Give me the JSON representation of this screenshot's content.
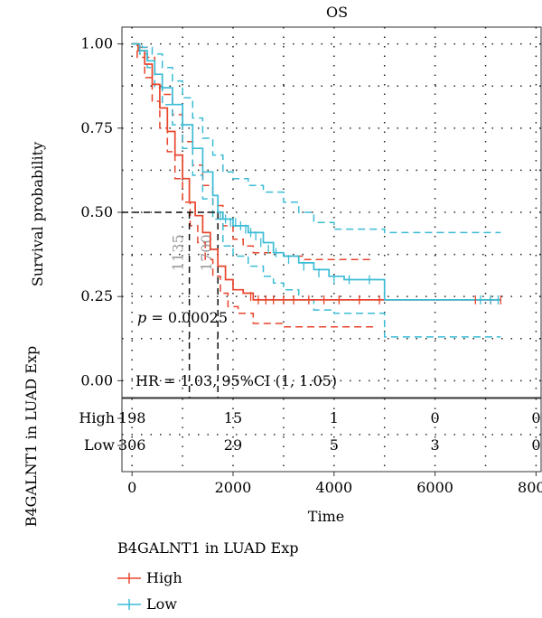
{
  "chart_data": {
    "type": "line",
    "title": "OS",
    "xlabel": "Time",
    "ylabel": "Survival probability",
    "xlim": [
      -200,
      8100
    ],
    "ylim": [
      -0.05,
      1.05
    ],
    "x_ticks": [
      0,
      2000,
      4000,
      6000,
      8000
    ],
    "x_tick_labels": [
      "0",
      "2000",
      "4000",
      "6000",
      "8000"
    ],
    "y_ticks": [
      0,
      0.25,
      0.5,
      0.75,
      1.0
    ],
    "y_tick_labels": [
      "0.00",
      "0.25",
      "0.50",
      "0.75",
      "1.00"
    ],
    "grid": true,
    "series": [
      {
        "name": "High",
        "color": "#e8452c",
        "curve": [
          [
            0,
            1.0
          ],
          [
            120,
            0.98
          ],
          [
            250,
            0.94
          ],
          [
            400,
            0.88
          ],
          [
            550,
            0.81
          ],
          [
            700,
            0.74
          ],
          [
            850,
            0.67
          ],
          [
            1000,
            0.6
          ],
          [
            1135,
            0.53
          ],
          [
            1250,
            0.49
          ],
          [
            1400,
            0.44
          ],
          [
            1550,
            0.39
          ],
          [
            1700,
            0.34
          ],
          [
            1850,
            0.3
          ],
          [
            2000,
            0.27
          ],
          [
            2200,
            0.26
          ],
          [
            2400,
            0.24
          ],
          [
            2700,
            0.24
          ],
          [
            3500,
            0.24
          ],
          [
            4200,
            0.24
          ],
          [
            5000,
            0.24
          ],
          [
            7300,
            0.24
          ]
        ],
        "ci_upper": [
          [
            0,
            1.0
          ],
          [
            150,
            0.99
          ],
          [
            300,
            0.96
          ],
          [
            450,
            0.91
          ],
          [
            600,
            0.85
          ],
          [
            800,
            0.79
          ],
          [
            1000,
            0.71
          ],
          [
            1200,
            0.64
          ],
          [
            1400,
            0.58
          ],
          [
            1600,
            0.52
          ],
          [
            1800,
            0.46
          ],
          [
            2000,
            0.42
          ],
          [
            2200,
            0.4
          ],
          [
            2400,
            0.38
          ],
          [
            3000,
            0.37
          ],
          [
            3400,
            0.36
          ],
          [
            4000,
            0.36
          ],
          [
            4800,
            0.36
          ]
        ],
        "ci_lower": [
          [
            0,
            1.0
          ],
          [
            100,
            0.96
          ],
          [
            250,
            0.9
          ],
          [
            400,
            0.83
          ],
          [
            550,
            0.75
          ],
          [
            700,
            0.68
          ],
          [
            850,
            0.6
          ],
          [
            1000,
            0.53
          ],
          [
            1150,
            0.46
          ],
          [
            1300,
            0.41
          ],
          [
            1450,
            0.36
          ],
          [
            1600,
            0.31
          ],
          [
            1750,
            0.26
          ],
          [
            1900,
            0.22
          ],
          [
            2100,
            0.2
          ],
          [
            2400,
            0.17
          ],
          [
            3000,
            0.16
          ],
          [
            3800,
            0.16
          ],
          [
            4800,
            0.16
          ]
        ],
        "censor_x": [
          2350,
          2500,
          2650,
          2800,
          3000,
          3200,
          3500,
          3800,
          4100,
          4500,
          4900,
          6800,
          7100,
          7300
        ],
        "censor_y": [
          0.25,
          0.24,
          0.24,
          0.24,
          0.24,
          0.24,
          0.24,
          0.24,
          0.24,
          0.24,
          0.24,
          0.24,
          0.24,
          0.24
        ]
      },
      {
        "name": "Low",
        "color": "#3bbcd5",
        "curve": [
          [
            0,
            1.0
          ],
          [
            150,
            0.98
          ],
          [
            300,
            0.95
          ],
          [
            450,
            0.91
          ],
          [
            600,
            0.87
          ],
          [
            800,
            0.82
          ],
          [
            1000,
            0.76
          ],
          [
            1200,
            0.69
          ],
          [
            1400,
            0.62
          ],
          [
            1600,
            0.55
          ],
          [
            1700,
            0.5
          ],
          [
            1800,
            0.48
          ],
          [
            2000,
            0.46
          ],
          [
            2300,
            0.44
          ],
          [
            2600,
            0.41
          ],
          [
            2800,
            0.38
          ],
          [
            3000,
            0.37
          ],
          [
            3300,
            0.35
          ],
          [
            3600,
            0.33
          ],
          [
            3900,
            0.31
          ],
          [
            4200,
            0.3
          ],
          [
            4600,
            0.3
          ],
          [
            5000,
            0.3
          ],
          [
            5000,
            0.24
          ],
          [
            7300,
            0.24
          ]
        ],
        "ci_upper": [
          [
            0,
            1.0
          ],
          [
            200,
            0.99
          ],
          [
            400,
            0.97
          ],
          [
            600,
            0.93
          ],
          [
            800,
            0.89
          ],
          [
            1000,
            0.84
          ],
          [
            1200,
            0.78
          ],
          [
            1400,
            0.72
          ],
          [
            1600,
            0.67
          ],
          [
            1800,
            0.62
          ],
          [
            2000,
            0.6
          ],
          [
            2300,
            0.58
          ],
          [
            2600,
            0.56
          ],
          [
            3000,
            0.53
          ],
          [
            3300,
            0.5
          ],
          [
            3600,
            0.47
          ],
          [
            4000,
            0.45
          ],
          [
            5000,
            0.45
          ],
          [
            5000,
            0.44
          ],
          [
            7300,
            0.44
          ]
        ],
        "ci_lower": [
          [
            0,
            1.0
          ],
          [
            150,
            0.97
          ],
          [
            300,
            0.93
          ],
          [
            450,
            0.87
          ],
          [
            600,
            0.82
          ],
          [
            800,
            0.76
          ],
          [
            1000,
            0.69
          ],
          [
            1200,
            0.61
          ],
          [
            1400,
            0.54
          ],
          [
            1600,
            0.48
          ],
          [
            1800,
            0.4
          ],
          [
            2000,
            0.37
          ],
          [
            2300,
            0.34
          ],
          [
            2600,
            0.31
          ],
          [
            2800,
            0.29
          ],
          [
            3000,
            0.27
          ],
          [
            3300,
            0.24
          ],
          [
            3600,
            0.21
          ],
          [
            4000,
            0.2
          ],
          [
            4600,
            0.2
          ],
          [
            5000,
            0.2
          ],
          [
            5000,
            0.13
          ],
          [
            7300,
            0.13
          ]
        ],
        "censor_x": [
          1750,
          1850,
          1950,
          2050,
          2150,
          2250,
          2350,
          2450,
          2550,
          2700,
          2850,
          3100,
          3400,
          3700,
          4000,
          4300,
          4700,
          6900,
          7100,
          7250
        ],
        "censor_y": [
          0.49,
          0.48,
          0.47,
          0.47,
          0.46,
          0.45,
          0.44,
          0.43,
          0.41,
          0.39,
          0.38,
          0.36,
          0.34,
          0.32,
          0.3,
          0.3,
          0.3,
          0.24,
          0.24,
          0.24
        ]
      }
    ],
    "median_survival": [
      {
        "x": 1135,
        "label": "1135"
      },
      {
        "x": 1700,
        "label": "1700"
      }
    ],
    "annotations": {
      "p_prefix": "p",
      "p_value": " = 0.00025",
      "hr_text": "HR = 1.03, 95%CI (1, 1.05)"
    },
    "risk_table": {
      "title": "B4GALNT1 in LUAD Exp",
      "times": [
        0,
        2000,
        4000,
        6000,
        8000
      ],
      "rows": [
        {
          "label": "High",
          "values": [
            "198",
            "15",
            "1",
            "0",
            "0"
          ]
        },
        {
          "label": "Low",
          "values": [
            "306",
            "29",
            "5",
            "3",
            "0"
          ]
        }
      ]
    },
    "legend": {
      "title": "B4GALNT1 in LUAD Exp",
      "placement": "bottom",
      "items": [
        {
          "label": "High",
          "color": "#e8452c"
        },
        {
          "label": "Low",
          "color": "#3bbcd5"
        }
      ]
    }
  }
}
